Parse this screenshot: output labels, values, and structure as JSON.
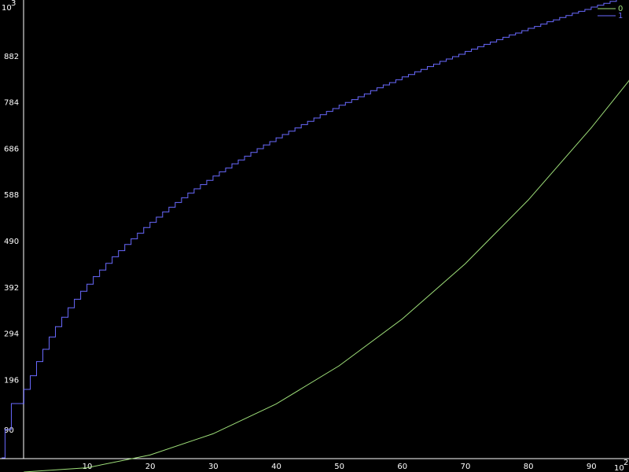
{
  "chart_data": {
    "type": "line",
    "title": "",
    "xlabel": "",
    "ylabel": "",
    "x_exponent_label": "10",
    "x_exponent_power": "2",
    "y_exponent_label": "10",
    "y_exponent_power": "3",
    "xlim": [
      -3.8,
      96
    ],
    "ylim": [
      0,
      1000
    ],
    "x_ticks": [
      10,
      20,
      30,
      40,
      50,
      60,
      70,
      80,
      90
    ],
    "x_tick_labels": [
      "10",
      "20",
      "30",
      "40",
      "50",
      "60",
      "70",
      "80",
      "90"
    ],
    "y_ticks": [
      90,
      196,
      294,
      392,
      490,
      588,
      686,
      784,
      882
    ],
    "y_tick_labels": [
      "90",
      "196",
      "294",
      "392",
      "490",
      "588",
      "686",
      "784",
      "882"
    ],
    "grid": false,
    "legend_position": "top-right",
    "series": [
      {
        "name": "0",
        "color": "#9fe07a",
        "style": "smooth",
        "points": [
          [
            0,
            0
          ],
          [
            10,
            9
          ],
          [
            20,
            36
          ],
          [
            30,
            81
          ],
          [
            40,
            144
          ],
          [
            50,
            225
          ],
          [
            60,
            324
          ],
          [
            70,
            441
          ],
          [
            80,
            576
          ],
          [
            90,
            729
          ],
          [
            96,
            829
          ],
          [
            100,
            970
          ]
        ]
      },
      {
        "name": "1",
        "color": "#6a6aff",
        "style": "step",
        "points": [
          [
            -3.5,
            30
          ],
          [
            -3,
            90
          ],
          [
            -2,
            145
          ],
          [
            0,
            175
          ],
          [
            1,
            204
          ],
          [
            2,
            234
          ],
          [
            3,
            260
          ],
          [
            4,
            286
          ],
          [
            5,
            308
          ],
          [
            6,
            328
          ],
          [
            7,
            348
          ],
          [
            8,
            366
          ],
          [
            9,
            383
          ],
          [
            10,
            398
          ],
          [
            11,
            414
          ],
          [
            12,
            428
          ],
          [
            13,
            442
          ],
          [
            14,
            456
          ],
          [
            15,
            469
          ],
          [
            16,
            482
          ],
          [
            17,
            494
          ],
          [
            18,
            506
          ],
          [
            19,
            518
          ],
          [
            20,
            529
          ],
          [
            21,
            540
          ],
          [
            22,
            551
          ],
          [
            23,
            561
          ],
          [
            24,
            571
          ],
          [
            25,
            581
          ],
          [
            26,
            591
          ],
          [
            27,
            600
          ],
          [
            28,
            609
          ],
          [
            29,
            618
          ],
          [
            30,
            627
          ],
          [
            31,
            636
          ],
          [
            32,
            644
          ],
          [
            33,
            653
          ],
          [
            34,
            661
          ],
          [
            35,
            669
          ],
          [
            36,
            677
          ],
          [
            37,
            685
          ],
          [
            38,
            693
          ],
          [
            39,
            700
          ],
          [
            40,
            708
          ],
          [
            41,
            715
          ],
          [
            42,
            722
          ],
          [
            43,
            729
          ],
          [
            44,
            736
          ],
          [
            45,
            743
          ],
          [
            46,
            750
          ],
          [
            47,
            757
          ],
          [
            48,
            764
          ],
          [
            49,
            770
          ],
          [
            50,
            777
          ],
          [
            51,
            783
          ],
          [
            52,
            789
          ],
          [
            53,
            795
          ],
          [
            54,
            801
          ],
          [
            55,
            808
          ],
          [
            56,
            814
          ],
          [
            57,
            820
          ],
          [
            58,
            825
          ],
          [
            59,
            831
          ],
          [
            60,
            837
          ],
          [
            61,
            842
          ],
          [
            62,
            848
          ],
          [
            63,
            853
          ],
          [
            64,
            859
          ],
          [
            65,
            864
          ],
          [
            66,
            870
          ],
          [
            67,
            875
          ],
          [
            68,
            880
          ],
          [
            69,
            885
          ],
          [
            70,
            891
          ],
          [
            71,
            896
          ],
          [
            72,
            901
          ],
          [
            73,
            906
          ],
          [
            74,
            911
          ],
          [
            75,
            916
          ],
          [
            76,
            921
          ],
          [
            77,
            926
          ],
          [
            78,
            930
          ],
          [
            79,
            935
          ],
          [
            80,
            940
          ],
          [
            81,
            944
          ],
          [
            82,
            949
          ],
          [
            83,
            954
          ],
          [
            84,
            958
          ],
          [
            85,
            963
          ],
          [
            86,
            967
          ],
          [
            87,
            972
          ],
          [
            88,
            976
          ],
          [
            89,
            980
          ],
          [
            90,
            985
          ],
          [
            91,
            989
          ],
          [
            92,
            993
          ],
          [
            93,
            997
          ],
          [
            94,
            1000
          ]
        ]
      }
    ]
  }
}
